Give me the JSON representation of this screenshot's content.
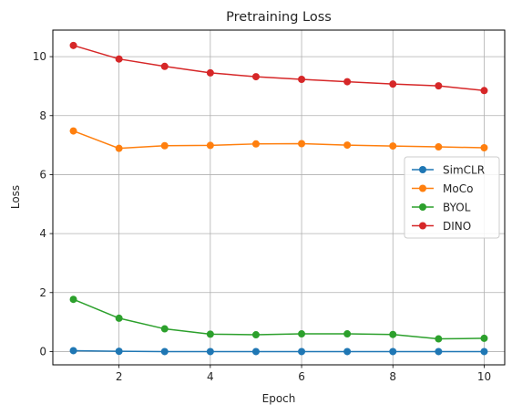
{
  "chart_data": {
    "type": "line",
    "title": "Pretraining Loss",
    "xlabel": "Epoch",
    "ylabel": "Loss",
    "x": [
      1,
      2,
      3,
      4,
      5,
      6,
      7,
      8,
      9,
      10
    ],
    "xlim": [
      0.55,
      10.45
    ],
    "ylim": [
      -0.45,
      10.9
    ],
    "xticks": [
      2,
      4,
      6,
      8,
      10
    ],
    "yticks": [
      0,
      2,
      4,
      6,
      8,
      10
    ],
    "grid": true,
    "legend_position": "center-right",
    "series": [
      {
        "name": "SimCLR",
        "color": "#1f77b4",
        "marker": "circle",
        "values": [
          0.03,
          0.01,
          0.0,
          0.0,
          0.0,
          0.0,
          0.0,
          0.0,
          0.0,
          0.0
        ]
      },
      {
        "name": "MoCo",
        "color": "#ff7f0e",
        "marker": "circle",
        "values": [
          7.48,
          6.89,
          6.98,
          6.99,
          7.04,
          7.05,
          7.0,
          6.97,
          6.94,
          6.91
        ]
      },
      {
        "name": "BYOL",
        "color": "#2ca02c",
        "marker": "circle",
        "values": [
          1.77,
          1.13,
          0.77,
          0.59,
          0.57,
          0.6,
          0.6,
          0.58,
          0.43,
          0.45
        ]
      },
      {
        "name": "DINO",
        "color": "#d62728",
        "marker": "circle",
        "values": [
          10.38,
          9.92,
          9.67,
          9.45,
          9.32,
          9.23,
          9.15,
          9.07,
          9.01,
          8.85
        ]
      }
    ]
  }
}
